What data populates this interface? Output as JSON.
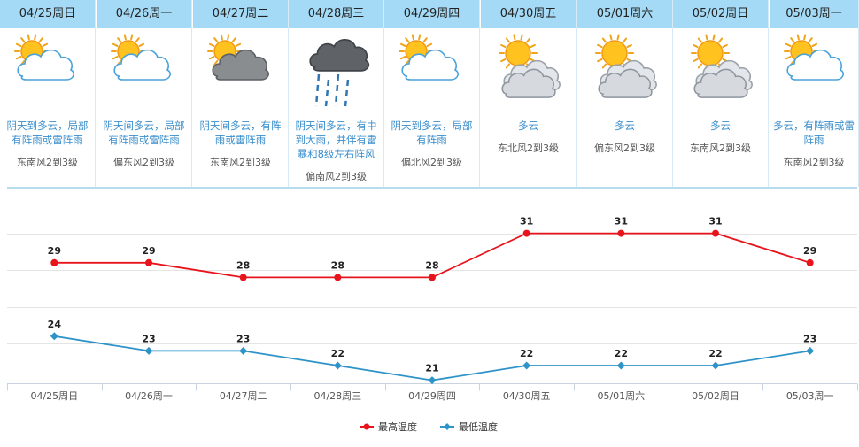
{
  "days": [
    {
      "date": "04/25周日",
      "icon": "partly-cloudy-sun-icon",
      "desc": [
        "阴天到多云，局部",
        "有阵雨或雷阵雨"
      ],
      "wind": "东南风2到3级"
    },
    {
      "date": "04/26周一",
      "icon": "partly-cloudy-sun-icon",
      "desc": [
        "阴天间多云，局部",
        "有阵雨或雷阵雨"
      ],
      "wind": "偏东风2到3级"
    },
    {
      "date": "04/27周二",
      "icon": "sun-gray-cloud-icon",
      "desc": [
        "阴天间多云，有阵",
        "雨或雷阵雨"
      ],
      "wind": "东南风2到3级"
    },
    {
      "date": "04/28周三",
      "icon": "storm-rain-icon",
      "desc": [
        "阴天间多云，有中",
        "到大雨，并伴有雷",
        "暴和8级左右阵风"
      ],
      "wind": "偏南风2到3级"
    },
    {
      "date": "04/29周四",
      "icon": "partly-cloudy-sun-icon",
      "desc": [
        "阴天到多云，局部",
        "有阵雨"
      ],
      "wind": "偏北风2到3级"
    },
    {
      "date": "04/30周五",
      "icon": "cloudy-sun-icon",
      "desc": [
        "多云"
      ],
      "wind": "东北风2到3级"
    },
    {
      "date": "05/01周六",
      "icon": "cloudy-sun-icon",
      "desc": [
        "多云"
      ],
      "wind": "偏东风2到3级"
    },
    {
      "date": "05/02周日",
      "icon": "cloudy-sun-icon",
      "desc": [
        "多云"
      ],
      "wind": "东南风2到3级"
    },
    {
      "date": "05/03周一",
      "icon": "partly-cloudy-sun-icon",
      "desc": [
        "多云，有阵雨或雷",
        "阵雨"
      ],
      "wind": "东南风2到3级"
    }
  ],
  "colors": {
    "high": "#e8141c",
    "low": "#2e93c8",
    "header": "#a4daf6",
    "desc": "#3a8ecb"
  },
  "chart_data": {
    "type": "line",
    "categories": [
      "04/25周日",
      "04/26周一",
      "04/27周二",
      "04/28周三",
      "04/29周四",
      "04/30周五",
      "05/01周六",
      "05/02周日",
      "05/03周一"
    ],
    "series": [
      {
        "name": "最高温度",
        "values": [
          29,
          29,
          28,
          28,
          28,
          31,
          31,
          31,
          29
        ],
        "color": "#e8141c",
        "marker": "circle"
      },
      {
        "name": "最低温度",
        "values": [
          24,
          23,
          23,
          22,
          21,
          22,
          22,
          22,
          23
        ],
        "color": "#2e93c8",
        "marker": "diamond"
      }
    ],
    "grid": true,
    "data_labels": true,
    "legend_position": "bottom-center"
  }
}
